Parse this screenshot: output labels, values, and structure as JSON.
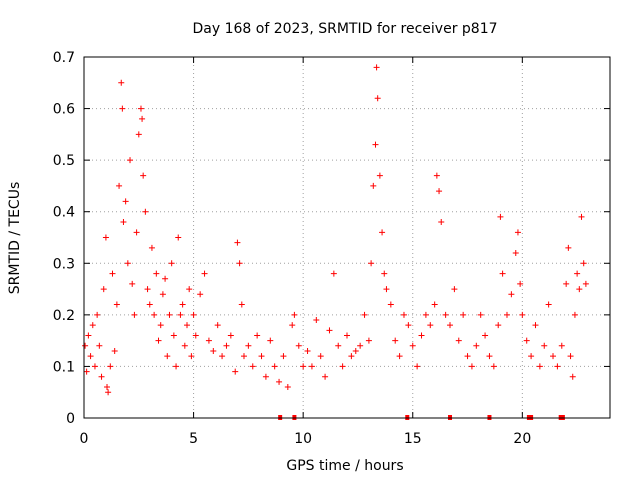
{
  "chart_data": {
    "type": "scatter",
    "title": "Day 168 of 2023, SRMTID for receiver p817",
    "xlabel": "GPS time / hours",
    "ylabel": "SRMTID / TECUs",
    "xlim": [
      0,
      24
    ],
    "ylim": [
      0,
      0.7
    ],
    "grid": true,
    "marker": "+",
    "color": "#ff0000",
    "x_ticks": [
      0,
      5,
      10,
      15,
      20
    ],
    "y_ticks": [
      0,
      0.1,
      0.2,
      0.3,
      0.4,
      0.5,
      0.6,
      0.7
    ],
    "x_tick_labels": [
      "0",
      "5",
      "10",
      "15",
      "20"
    ],
    "y_tick_labels": [
      "0",
      "0.1",
      "0.2",
      "0.3",
      "0.4",
      "0.5",
      "0.6",
      "0.7"
    ],
    "series": [
      {
        "name": "SRMTID",
        "points": [
          [
            0.05,
            0.14
          ],
          [
            0.12,
            0.09
          ],
          [
            0.2,
            0.16
          ],
          [
            0.3,
            0.12
          ],
          [
            0.4,
            0.18
          ],
          [
            0.5,
            0.1
          ],
          [
            0.6,
            0.2
          ],
          [
            0.7,
            0.14
          ],
          [
            0.8,
            0.08
          ],
          [
            0.9,
            0.25
          ],
          [
            1.0,
            0.35
          ],
          [
            1.05,
            0.06
          ],
          [
            1.1,
            0.05
          ],
          [
            1.2,
            0.1
          ],
          [
            1.3,
            0.28
          ],
          [
            1.4,
            0.13
          ],
          [
            1.5,
            0.22
          ],
          [
            1.6,
            0.45
          ],
          [
            1.7,
            0.65
          ],
          [
            1.75,
            0.6
          ],
          [
            1.8,
            0.38
          ],
          [
            1.9,
            0.42
          ],
          [
            2.0,
            0.3
          ],
          [
            2.1,
            0.5
          ],
          [
            2.2,
            0.26
          ],
          [
            2.3,
            0.2
          ],
          [
            2.4,
            0.36
          ],
          [
            2.5,
            0.55
          ],
          [
            2.6,
            0.6
          ],
          [
            2.65,
            0.58
          ],
          [
            2.7,
            0.47
          ],
          [
            2.8,
            0.4
          ],
          [
            2.9,
            0.25
          ],
          [
            3.0,
            0.22
          ],
          [
            3.1,
            0.33
          ],
          [
            3.2,
            0.2
          ],
          [
            3.3,
            0.28
          ],
          [
            3.4,
            0.15
          ],
          [
            3.5,
            0.18
          ],
          [
            3.6,
            0.24
          ],
          [
            3.7,
            0.27
          ],
          [
            3.8,
            0.12
          ],
          [
            3.9,
            0.2
          ],
          [
            4.0,
            0.3
          ],
          [
            4.1,
            0.16
          ],
          [
            4.2,
            0.1
          ],
          [
            4.3,
            0.35
          ],
          [
            4.4,
            0.2
          ],
          [
            4.5,
            0.22
          ],
          [
            4.6,
            0.14
          ],
          [
            4.7,
            0.18
          ],
          [
            4.8,
            0.25
          ],
          [
            4.9,
            0.12
          ],
          [
            5.0,
            0.2
          ],
          [
            5.1,
            0.16
          ],
          [
            5.3,
            0.24
          ],
          [
            5.5,
            0.28
          ],
          [
            5.7,
            0.15
          ],
          [
            5.9,
            0.13
          ],
          [
            6.1,
            0.18
          ],
          [
            6.3,
            0.12
          ],
          [
            6.5,
            0.14
          ],
          [
            6.7,
            0.16
          ],
          [
            6.9,
            0.09
          ],
          [
            7.0,
            0.34
          ],
          [
            7.1,
            0.3
          ],
          [
            7.2,
            0.22
          ],
          [
            7.3,
            0.12
          ],
          [
            7.5,
            0.14
          ],
          [
            7.7,
            0.1
          ],
          [
            7.9,
            0.16
          ],
          [
            8.1,
            0.12
          ],
          [
            8.3,
            0.08
          ],
          [
            8.5,
            0.15
          ],
          [
            8.7,
            0.1
          ],
          [
            8.9,
            0.07
          ],
          [
            9.1,
            0.12
          ],
          [
            9.3,
            0.06
          ],
          [
            9.5,
            0.18
          ],
          [
            9.6,
            0.2
          ],
          [
            9.8,
            0.14
          ],
          [
            10.0,
            0.1
          ],
          [
            10.2,
            0.13
          ],
          [
            10.4,
            0.1
          ],
          [
            10.6,
            0.19
          ],
          [
            10.8,
            0.12
          ],
          [
            11.0,
            0.08
          ],
          [
            11.2,
            0.17
          ],
          [
            11.4,
            0.28
          ],
          [
            11.6,
            0.14
          ],
          [
            11.8,
            0.1
          ],
          [
            12.0,
            0.16
          ],
          [
            12.2,
            0.12
          ],
          [
            12.4,
            0.13
          ],
          [
            12.6,
            0.14
          ],
          [
            12.8,
            0.2
          ],
          [
            13.0,
            0.15
          ],
          [
            13.1,
            0.3
          ],
          [
            13.2,
            0.45
          ],
          [
            13.3,
            0.53
          ],
          [
            13.35,
            0.68
          ],
          [
            13.4,
            0.62
          ],
          [
            13.5,
            0.47
          ],
          [
            13.6,
            0.36
          ],
          [
            13.7,
            0.28
          ],
          [
            13.8,
            0.25
          ],
          [
            14.0,
            0.22
          ],
          [
            14.2,
            0.15
          ],
          [
            14.4,
            0.12
          ],
          [
            14.6,
            0.2
          ],
          [
            14.8,
            0.18
          ],
          [
            15.0,
            0.14
          ],
          [
            15.2,
            0.1
          ],
          [
            15.4,
            0.16
          ],
          [
            15.6,
            0.2
          ],
          [
            15.8,
            0.18
          ],
          [
            16.0,
            0.22
          ],
          [
            16.1,
            0.47
          ],
          [
            16.2,
            0.44
          ],
          [
            16.3,
            0.38
          ],
          [
            16.5,
            0.2
          ],
          [
            16.7,
            0.18
          ],
          [
            16.9,
            0.25
          ],
          [
            17.1,
            0.15
          ],
          [
            17.3,
            0.2
          ],
          [
            17.5,
            0.12
          ],
          [
            17.7,
            0.1
          ],
          [
            17.9,
            0.14
          ],
          [
            18.1,
            0.2
          ],
          [
            18.3,
            0.16
          ],
          [
            18.5,
            0.12
          ],
          [
            18.7,
            0.1
          ],
          [
            18.9,
            0.18
          ],
          [
            19.0,
            0.39
          ],
          [
            19.1,
            0.28
          ],
          [
            19.3,
            0.2
          ],
          [
            19.5,
            0.24
          ],
          [
            19.7,
            0.32
          ],
          [
            19.8,
            0.36
          ],
          [
            19.9,
            0.26
          ],
          [
            20.0,
            0.2
          ],
          [
            20.2,
            0.15
          ],
          [
            20.4,
            0.12
          ],
          [
            20.6,
            0.18
          ],
          [
            20.8,
            0.1
          ],
          [
            21.0,
            0.14
          ],
          [
            21.2,
            0.22
          ],
          [
            21.4,
            0.12
          ],
          [
            21.6,
            0.1
          ],
          [
            21.8,
            0.14
          ],
          [
            22.0,
            0.26
          ],
          [
            22.1,
            0.33
          ],
          [
            22.2,
            0.12
          ],
          [
            22.3,
            0.08
          ],
          [
            22.4,
            0.2
          ],
          [
            22.5,
            0.28
          ],
          [
            22.6,
            0.25
          ],
          [
            22.7,
            0.39
          ],
          [
            22.8,
            0.3
          ],
          [
            22.9,
            0.26
          ]
        ]
      }
    ],
    "data_gaps_hours": [
      8.95,
      9.6,
      14.75,
      16.7,
      18.5,
      20.3,
      20.4,
      21.75,
      21.85
    ]
  }
}
